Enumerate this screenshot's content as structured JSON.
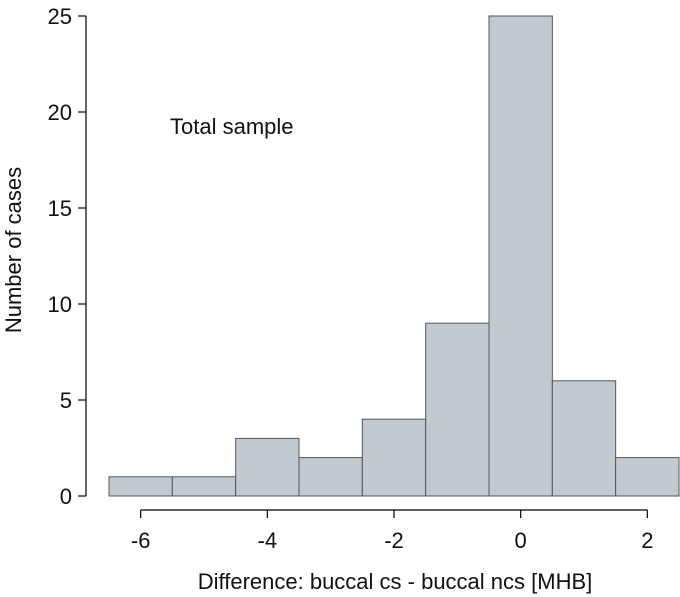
{
  "chart_data": {
    "type": "bar",
    "title": "",
    "xlabel": "Difference: buccal cs - buccal ncs [MHB]",
    "ylabel": "Number of cases",
    "annotation": "Total sample",
    "bar_color": "#c2cad0",
    "bins": [
      {
        "x0": -6.5,
        "x1": -5.5,
        "count": 1
      },
      {
        "x0": -5.5,
        "x1": -4.5,
        "count": 1
      },
      {
        "x0": -4.5,
        "x1": -3.5,
        "count": 3
      },
      {
        "x0": -3.5,
        "x1": -2.5,
        "count": 2
      },
      {
        "x0": -2.5,
        "x1": -1.5,
        "count": 4
      },
      {
        "x0": -1.5,
        "x1": -0.5,
        "count": 9
      },
      {
        "x0": -0.5,
        "x1": 0.5,
        "count": 25
      },
      {
        "x0": 0.5,
        "x1": 1.5,
        "count": 6
      },
      {
        "x0": 1.5,
        "x1": 2.5,
        "count": 2
      }
    ],
    "xlim": [
      -6.5,
      2.5
    ],
    "ylim": [
      0,
      25
    ],
    "xticks": [
      -6,
      -4,
      -2,
      0,
      2
    ],
    "xtick_labels": [
      "-6",
      "-4",
      "-2",
      "0",
      "2"
    ],
    "yticks": [
      0,
      5,
      10,
      15,
      20,
      25
    ],
    "ytick_labels": [
      "0",
      "5",
      "10",
      "15",
      "20",
      "25"
    ],
    "grid": false
  }
}
